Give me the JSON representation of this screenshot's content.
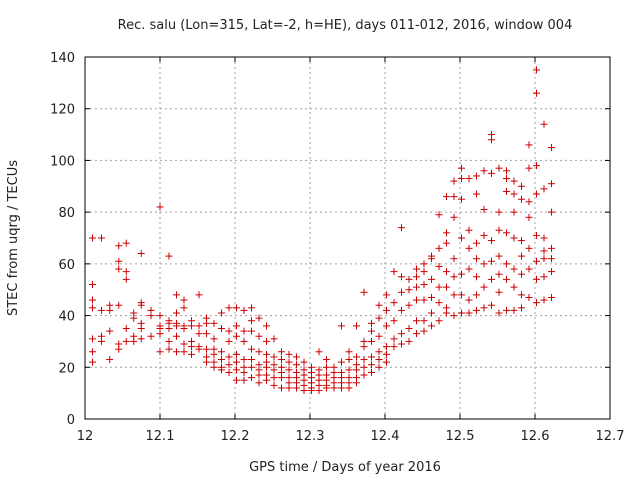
{
  "chart_data": {
    "type": "scatter",
    "title": "Rec. salu (Lon=315, Lat=-2, h=HE), days 011-012, 2016, window 004",
    "xlabel": "GPS time / Days of year 2016",
    "ylabel": "STEC from uqrg / TECUs",
    "xlim": [
      12,
      12.7
    ],
    "ylim": [
      0,
      140
    ],
    "xticks": [
      12,
      12.1,
      12.2,
      12.3,
      12.4,
      12.5,
      12.6,
      12.7
    ],
    "xtick_labels": [
      "12",
      "12.1",
      "12.2",
      "12.3",
      "12.4",
      "12.5",
      "12.6",
      "12.7"
    ],
    "yticks": [
      0,
      20,
      40,
      60,
      80,
      100,
      120,
      140
    ],
    "ytick_labels": [
      "0",
      "20",
      "40",
      "60",
      "80",
      "100",
      "120",
      "140"
    ],
    "grid": true,
    "marker": "plus",
    "color": "#cc0000",
    "points": [
      [
        12.01,
        70
      ],
      [
        12.01,
        52
      ],
      [
        12.01,
        46
      ],
      [
        12.01,
        43
      ],
      [
        12.01,
        31
      ],
      [
        12.01,
        26
      ],
      [
        12.01,
        22
      ],
      [
        12.022,
        70
      ],
      [
        12.022,
        42
      ],
      [
        12.022,
        32
      ],
      [
        12.022,
        30
      ],
      [
        12.033,
        44
      ],
      [
        12.033,
        42
      ],
      [
        12.033,
        34
      ],
      [
        12.033,
        23
      ],
      [
        12.045,
        67
      ],
      [
        12.045,
        61
      ],
      [
        12.045,
        58
      ],
      [
        12.045,
        44
      ],
      [
        12.045,
        29
      ],
      [
        12.045,
        27
      ],
      [
        12.055,
        68
      ],
      [
        12.055,
        57
      ],
      [
        12.055,
        54
      ],
      [
        12.055,
        35
      ],
      [
        12.055,
        30
      ],
      [
        12.065,
        41
      ],
      [
        12.065,
        39
      ],
      [
        12.065,
        32
      ],
      [
        12.065,
        30
      ],
      [
        12.075,
        64
      ],
      [
        12.075,
        45
      ],
      [
        12.075,
        44
      ],
      [
        12.075,
        37
      ],
      [
        12.075,
        35
      ],
      [
        12.075,
        31
      ],
      [
        12.088,
        42
      ],
      [
        12.088,
        40
      ],
      [
        12.088,
        32
      ],
      [
        12.1,
        82
      ],
      [
        12.1,
        40
      ],
      [
        12.1,
        36
      ],
      [
        12.1,
        35
      ],
      [
        12.1,
        33
      ],
      [
        12.1,
        26
      ],
      [
        12.112,
        63
      ],
      [
        12.112,
        38
      ],
      [
        12.112,
        37
      ],
      [
        12.112,
        35
      ],
      [
        12.112,
        30
      ],
      [
        12.112,
        27
      ],
      [
        12.122,
        48
      ],
      [
        12.122,
        41
      ],
      [
        12.122,
        37
      ],
      [
        12.122,
        36
      ],
      [
        12.122,
        32
      ],
      [
        12.122,
        26
      ],
      [
        12.132,
        46
      ],
      [
        12.132,
        43
      ],
      [
        12.132,
        36
      ],
      [
        12.132,
        35
      ],
      [
        12.132,
        29
      ],
      [
        12.132,
        26
      ],
      [
        12.142,
        38
      ],
      [
        12.142,
        36
      ],
      [
        12.142,
        30
      ],
      [
        12.142,
        28
      ],
      [
        12.142,
        25
      ],
      [
        12.152,
        48
      ],
      [
        12.152,
        36
      ],
      [
        12.152,
        33
      ],
      [
        12.152,
        28
      ],
      [
        12.152,
        27
      ],
      [
        12.162,
        39
      ],
      [
        12.162,
        37
      ],
      [
        12.162,
        33
      ],
      [
        12.162,
        27
      ],
      [
        12.162,
        24
      ],
      [
        12.162,
        22
      ],
      [
        12.172,
        37
      ],
      [
        12.172,
        31
      ],
      [
        12.172,
        27
      ],
      [
        12.172,
        25
      ],
      [
        12.172,
        22
      ],
      [
        12.172,
        20
      ],
      [
        12.182,
        41
      ],
      [
        12.182,
        35
      ],
      [
        12.182,
        26
      ],
      [
        12.182,
        23
      ],
      [
        12.182,
        20
      ],
      [
        12.182,
        19
      ],
      [
        12.192,
        43
      ],
      [
        12.192,
        34
      ],
      [
        12.192,
        30
      ],
      [
        12.192,
        24
      ],
      [
        12.192,
        21
      ],
      [
        12.192,
        18
      ],
      [
        12.202,
        43
      ],
      [
        12.202,
        36
      ],
      [
        12.202,
        32
      ],
      [
        12.202,
        25
      ],
      [
        12.202,
        22
      ],
      [
        12.202,
        19
      ],
      [
        12.202,
        15
      ],
      [
        12.212,
        42
      ],
      [
        12.212,
        34
      ],
      [
        12.212,
        30
      ],
      [
        12.212,
        23
      ],
      [
        12.212,
        20
      ],
      [
        12.212,
        18
      ],
      [
        12.212,
        15
      ],
      [
        12.222,
        43
      ],
      [
        12.222,
        38
      ],
      [
        12.222,
        34
      ],
      [
        12.222,
        27
      ],
      [
        12.222,
        23
      ],
      [
        12.222,
        20
      ],
      [
        12.222,
        16
      ],
      [
        12.232,
        39
      ],
      [
        12.232,
        32
      ],
      [
        12.232,
        26
      ],
      [
        12.232,
        21
      ],
      [
        12.232,
        19
      ],
      [
        12.232,
        17
      ],
      [
        12.232,
        14
      ],
      [
        12.242,
        36
      ],
      [
        12.242,
        30
      ],
      [
        12.242,
        25
      ],
      [
        12.242,
        22
      ],
      [
        12.242,
        20
      ],
      [
        12.242,
        17
      ],
      [
        12.242,
        15
      ],
      [
        12.252,
        31
      ],
      [
        12.252,
        24
      ],
      [
        12.252,
        21
      ],
      [
        12.252,
        19
      ],
      [
        12.252,
        16
      ],
      [
        12.252,
        13
      ],
      [
        12.262,
        26
      ],
      [
        12.262,
        23
      ],
      [
        12.262,
        20
      ],
      [
        12.262,
        18
      ],
      [
        12.262,
        16
      ],
      [
        12.262,
        12
      ],
      [
        12.272,
        25
      ],
      [
        12.272,
        22
      ],
      [
        12.272,
        19
      ],
      [
        12.272,
        16
      ],
      [
        12.272,
        14
      ],
      [
        12.272,
        12
      ],
      [
        12.282,
        24
      ],
      [
        12.282,
        21
      ],
      [
        12.282,
        18
      ],
      [
        12.282,
        16
      ],
      [
        12.282,
        14
      ],
      [
        12.282,
        12
      ],
      [
        12.292,
        22
      ],
      [
        12.292,
        19
      ],
      [
        12.292,
        17
      ],
      [
        12.292,
        15
      ],
      [
        12.292,
        13
      ],
      [
        12.292,
        11
      ],
      [
        12.302,
        20
      ],
      [
        12.302,
        18
      ],
      [
        12.302,
        16
      ],
      [
        12.302,
        14
      ],
      [
        12.302,
        12
      ],
      [
        12.302,
        11
      ],
      [
        12.312,
        26
      ],
      [
        12.312,
        19
      ],
      [
        12.312,
        17
      ],
      [
        12.312,
        15
      ],
      [
        12.312,
        13
      ],
      [
        12.312,
        11
      ],
      [
        12.322,
        23
      ],
      [
        12.322,
        20
      ],
      [
        12.322,
        17
      ],
      [
        12.322,
        15
      ],
      [
        12.322,
        13
      ],
      [
        12.322,
        12
      ],
      [
        12.332,
        20
      ],
      [
        12.332,
        18
      ],
      [
        12.332,
        16
      ],
      [
        12.332,
        14
      ],
      [
        12.332,
        12
      ],
      [
        12.342,
        36
      ],
      [
        12.342,
        22
      ],
      [
        12.342,
        18
      ],
      [
        12.342,
        16
      ],
      [
        12.342,
        14
      ],
      [
        12.342,
        12
      ],
      [
        12.352,
        26
      ],
      [
        12.352,
        23
      ],
      [
        12.352,
        19
      ],
      [
        12.352,
        16
      ],
      [
        12.352,
        14
      ],
      [
        12.352,
        12
      ],
      [
        12.362,
        36
      ],
      [
        12.362,
        24
      ],
      [
        12.362,
        21
      ],
      [
        12.362,
        19
      ],
      [
        12.362,
        16
      ],
      [
        12.362,
        14
      ],
      [
        12.372,
        49
      ],
      [
        12.372,
        30
      ],
      [
        12.372,
        28
      ],
      [
        12.372,
        23
      ],
      [
        12.372,
        20
      ],
      [
        12.372,
        17
      ],
      [
        12.382,
        37
      ],
      [
        12.382,
        34
      ],
      [
        12.382,
        30
      ],
      [
        12.382,
        24
      ],
      [
        12.382,
        21
      ],
      [
        12.382,
        18
      ],
      [
        12.392,
        44
      ],
      [
        12.392,
        39
      ],
      [
        12.392,
        32
      ],
      [
        12.392,
        26
      ],
      [
        12.392,
        23
      ],
      [
        12.392,
        20
      ],
      [
        12.402,
        48
      ],
      [
        12.402,
        42
      ],
      [
        12.402,
        36
      ],
      [
        12.402,
        28
      ],
      [
        12.402,
        25
      ],
      [
        12.402,
        22
      ],
      [
        12.412,
        57
      ],
      [
        12.412,
        45
      ],
      [
        12.412,
        38
      ],
      [
        12.412,
        31
      ],
      [
        12.412,
        28
      ],
      [
        12.422,
        74
      ],
      [
        12.422,
        55
      ],
      [
        12.422,
        49
      ],
      [
        12.422,
        42
      ],
      [
        12.422,
        33
      ],
      [
        12.422,
        29
      ],
      [
        12.432,
        54
      ],
      [
        12.432,
        50
      ],
      [
        12.432,
        44
      ],
      [
        12.432,
        35
      ],
      [
        12.432,
        30
      ],
      [
        12.442,
        58
      ],
      [
        12.442,
        55
      ],
      [
        12.442,
        51
      ],
      [
        12.442,
        46
      ],
      [
        12.442,
        38
      ],
      [
        12.442,
        33
      ],
      [
        12.452,
        60
      ],
      [
        12.452,
        57
      ],
      [
        12.452,
        52
      ],
      [
        12.452,
        46
      ],
      [
        12.452,
        38
      ],
      [
        12.452,
        34
      ],
      [
        12.462,
        63
      ],
      [
        12.462,
        62
      ],
      [
        12.462,
        54
      ],
      [
        12.462,
        47
      ],
      [
        12.462,
        41
      ],
      [
        12.462,
        36
      ],
      [
        12.472,
        79
      ],
      [
        12.472,
        66
      ],
      [
        12.472,
        59
      ],
      [
        12.472,
        51
      ],
      [
        12.472,
        45
      ],
      [
        12.472,
        38
      ],
      [
        12.482,
        86
      ],
      [
        12.482,
        72
      ],
      [
        12.482,
        68
      ],
      [
        12.482,
        57
      ],
      [
        12.482,
        51
      ],
      [
        12.482,
        43
      ],
      [
        12.482,
        41
      ],
      [
        12.492,
        92
      ],
      [
        12.492,
        86
      ],
      [
        12.492,
        78
      ],
      [
        12.492,
        62
      ],
      [
        12.492,
        55
      ],
      [
        12.492,
        48
      ],
      [
        12.492,
        40
      ],
      [
        12.502,
        97
      ],
      [
        12.502,
        93
      ],
      [
        12.502,
        85
      ],
      [
        12.502,
        70
      ],
      [
        12.502,
        56
      ],
      [
        12.502,
        48
      ],
      [
        12.502,
        41
      ],
      [
        12.512,
        93
      ],
      [
        12.512,
        73
      ],
      [
        12.512,
        66
      ],
      [
        12.512,
        58
      ],
      [
        12.512,
        46
      ],
      [
        12.512,
        41
      ],
      [
        12.522,
        94
      ],
      [
        12.522,
        87
      ],
      [
        12.522,
        68
      ],
      [
        12.522,
        62
      ],
      [
        12.522,
        55
      ],
      [
        12.522,
        48
      ],
      [
        12.522,
        42
      ],
      [
        12.532,
        96
      ],
      [
        12.532,
        81
      ],
      [
        12.532,
        71
      ],
      [
        12.532,
        60
      ],
      [
        12.532,
        51
      ],
      [
        12.532,
        43
      ],
      [
        12.542,
        110
      ],
      [
        12.542,
        108
      ],
      [
        12.542,
        95
      ],
      [
        12.542,
        69
      ],
      [
        12.542,
        61
      ],
      [
        12.542,
        54
      ],
      [
        12.542,
        44
      ],
      [
        12.552,
        97
      ],
      [
        12.552,
        80
      ],
      [
        12.552,
        73
      ],
      [
        12.552,
        63
      ],
      [
        12.552,
        56
      ],
      [
        12.552,
        49
      ],
      [
        12.552,
        41
      ],
      [
        12.562,
        96
      ],
      [
        12.562,
        93
      ],
      [
        12.562,
        88
      ],
      [
        12.562,
        72
      ],
      [
        12.562,
        60
      ],
      [
        12.562,
        54
      ],
      [
        12.562,
        42
      ],
      [
        12.572,
        92
      ],
      [
        12.572,
        87
      ],
      [
        12.572,
        80
      ],
      [
        12.572,
        70
      ],
      [
        12.572,
        58
      ],
      [
        12.572,
        51
      ],
      [
        12.572,
        42
      ],
      [
        12.582,
        90
      ],
      [
        12.582,
        85
      ],
      [
        12.582,
        69
      ],
      [
        12.582,
        63
      ],
      [
        12.582,
        56
      ],
      [
        12.582,
        48
      ],
      [
        12.582,
        43
      ],
      [
        12.592,
        106
      ],
      [
        12.592,
        97
      ],
      [
        12.592,
        84
      ],
      [
        12.592,
        78
      ],
      [
        12.592,
        66
      ],
      [
        12.592,
        58
      ],
      [
        12.592,
        47
      ],
      [
        12.602,
        135
      ],
      [
        12.602,
        126
      ],
      [
        12.602,
        98
      ],
      [
        12.602,
        87
      ],
      [
        12.602,
        71
      ],
      [
        12.602,
        61
      ],
      [
        12.602,
        54
      ],
      [
        12.602,
        45
      ],
      [
        12.612,
        114
      ],
      [
        12.612,
        89
      ],
      [
        12.612,
        70
      ],
      [
        12.612,
        65
      ],
      [
        12.612,
        62
      ],
      [
        12.612,
        55
      ],
      [
        12.612,
        46
      ],
      [
        12.622,
        105
      ],
      [
        12.622,
        91
      ],
      [
        12.622,
        80
      ],
      [
        12.622,
        66
      ],
      [
        12.622,
        62
      ],
      [
        12.622,
        57
      ],
      [
        12.622,
        47
      ]
    ]
  }
}
